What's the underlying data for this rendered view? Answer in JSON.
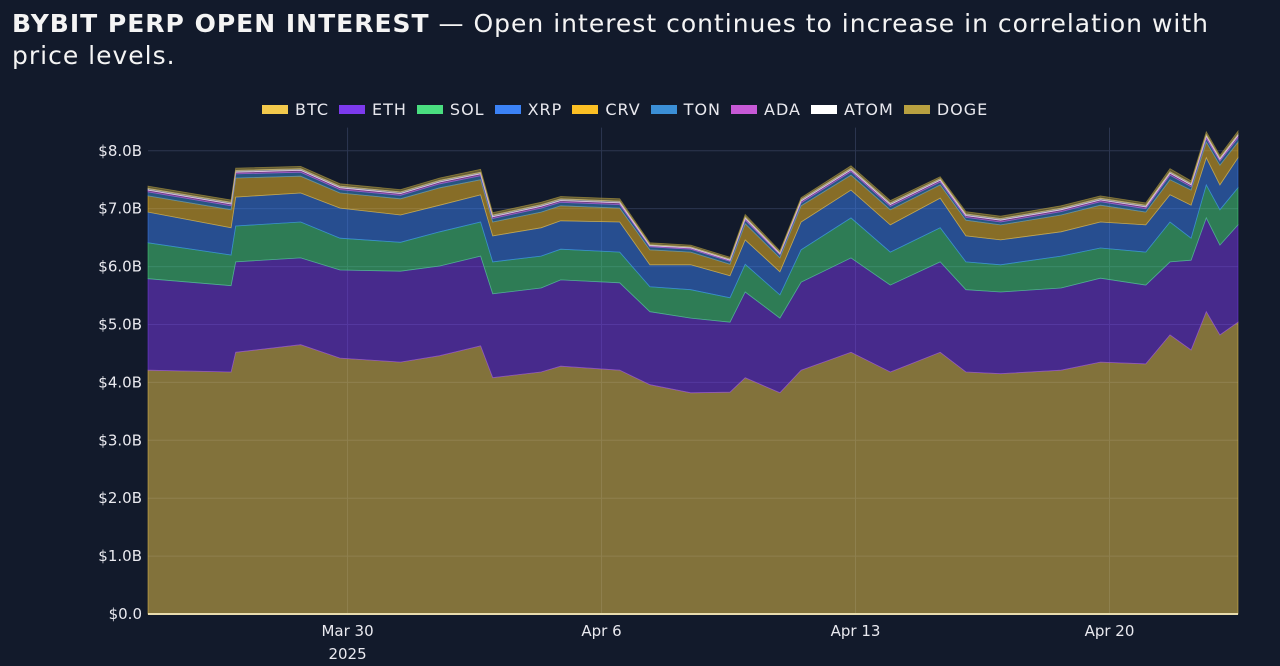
{
  "title": {
    "bold": "BYBIT PERP OPEN INTEREST",
    "rest": " — Open interest continues to increase in correlation with price levels."
  },
  "chart_data": {
    "type": "area",
    "stacked": true,
    "grid": true,
    "legend_position": "top",
    "xlim": [
      "2025-03-24T12:00",
      "2025-04-23T13:00"
    ],
    "ylim": [
      0,
      8.4
    ],
    "y_ticks": [
      0,
      1,
      2,
      3,
      4,
      5,
      6,
      7,
      8
    ],
    "y_tick_labels": [
      "$0.0",
      "$1.0B",
      "$2.0B",
      "$3.0B",
      "$4.0B",
      "$5.0B",
      "$6.0B",
      "$7.0B",
      "$8.0B"
    ],
    "x_ticks": [
      "2025-03-30",
      "2025-04-06",
      "2025-04-13",
      "2025-04-20"
    ],
    "x_tick_labels": [
      "Mar 30",
      "Apr 6",
      "Apr 13",
      "Apr 20"
    ],
    "x_year_label": "2025",
    "x": [
      "2025-03-24T12:00",
      "2025-03-26T19:00",
      "2025-03-26T22:00",
      "2025-03-28T17:00",
      "2025-03-29T19:00",
      "2025-03-31T11:00",
      "2025-04-01T13:00",
      "2025-04-02T16:00",
      "2025-04-03T00:00",
      "2025-04-04T08:00",
      "2025-04-04T21:00",
      "2025-04-06T12:00",
      "2025-04-07T08:00",
      "2025-04-08T11:00",
      "2025-04-09T13:00",
      "2025-04-09T23:00",
      "2025-04-10T22:00",
      "2025-04-11T12:00",
      "2025-04-12T21:00",
      "2025-04-13T23:00",
      "2025-04-15T08:00",
      "2025-04-16T01:00",
      "2025-04-17T00:00",
      "2025-04-18T16:00",
      "2025-04-19T18:00",
      "2025-04-21T00:00",
      "2025-04-21T16:00",
      "2025-04-22T06:00",
      "2025-04-22T16:00",
      "2025-04-23T01:00",
      "2025-04-23T13:00"
    ],
    "series": [
      {
        "name": "BTC",
        "color": "#f2c94c",
        "values": [
          4.21,
          4.18,
          4.52,
          4.65,
          4.42,
          4.35,
          4.46,
          4.63,
          4.08,
          4.18,
          4.28,
          4.21,
          3.96,
          3.82,
          3.83,
          4.08,
          3.82,
          4.21,
          4.52,
          4.18,
          4.52,
          4.18,
          4.15,
          4.21,
          4.35,
          4.32,
          4.82,
          4.56,
          5.22,
          4.82,
          5.04
        ]
      },
      {
        "name": "ETH",
        "color": "#7c3aed",
        "values": [
          1.58,
          1.49,
          1.56,
          1.5,
          1.52,
          1.57,
          1.55,
          1.55,
          1.45,
          1.45,
          1.49,
          1.51,
          1.26,
          1.29,
          1.21,
          1.48,
          1.29,
          1.52,
          1.63,
          1.5,
          1.56,
          1.42,
          1.41,
          1.42,
          1.45,
          1.36,
          1.26,
          1.55,
          1.62,
          1.55,
          1.68
        ]
      },
      {
        "name": "SOL",
        "color": "#4ade80",
        "values": [
          0.62,
          0.53,
          0.62,
          0.62,
          0.55,
          0.5,
          0.59,
          0.59,
          0.55,
          0.55,
          0.53,
          0.53,
          0.43,
          0.49,
          0.42,
          0.48,
          0.4,
          0.56,
          0.69,
          0.57,
          0.59,
          0.48,
          0.47,
          0.55,
          0.52,
          0.57,
          0.69,
          0.38,
          0.57,
          0.61,
          0.64
        ]
      },
      {
        "name": "XRP",
        "color": "#3b82f6",
        "values": [
          0.53,
          0.47,
          0.5,
          0.5,
          0.52,
          0.47,
          0.46,
          0.47,
          0.45,
          0.49,
          0.49,
          0.52,
          0.38,
          0.43,
          0.38,
          0.42,
          0.4,
          0.48,
          0.48,
          0.47,
          0.51,
          0.45,
          0.43,
          0.42,
          0.45,
          0.47,
          0.47,
          0.57,
          0.47,
          0.43,
          0.52
        ]
      },
      {
        "name": "CRV",
        "color": "#fbbf24",
        "values": [
          0.28,
          0.31,
          0.33,
          0.29,
          0.26,
          0.28,
          0.3,
          0.26,
          0.24,
          0.27,
          0.26,
          0.24,
          0.26,
          0.22,
          0.2,
          0.28,
          0.24,
          0.28,
          0.26,
          0.26,
          0.23,
          0.27,
          0.26,
          0.29,
          0.29,
          0.22,
          0.26,
          0.26,
          0.27,
          0.34,
          0.27
        ]
      },
      {
        "name": "TON",
        "color": "#3b8fd6",
        "values": [
          0.07,
          0.07,
          0.07,
          0.07,
          0.06,
          0.06,
          0.07,
          0.07,
          0.06,
          0.07,
          0.06,
          0.06,
          0.05,
          0.05,
          0.05,
          0.06,
          0.05,
          0.05,
          0.06,
          0.06,
          0.05,
          0.05,
          0.05,
          0.06,
          0.06,
          0.06,
          0.08,
          0.06,
          0.06,
          0.07,
          0.07
        ]
      },
      {
        "name": "ADA",
        "color": "#c659d6",
        "values": [
          0.03,
          0.03,
          0.03,
          0.03,
          0.03,
          0.03,
          0.03,
          0.03,
          0.03,
          0.03,
          0.03,
          0.03,
          0.02,
          0.02,
          0.02,
          0.03,
          0.02,
          0.03,
          0.03,
          0.03,
          0.03,
          0.03,
          0.03,
          0.03,
          0.03,
          0.03,
          0.03,
          0.03,
          0.04,
          0.03,
          0.04
        ]
      },
      {
        "name": "ATOM",
        "color": "#ffffff",
        "values": [
          0.03,
          0.03,
          0.03,
          0.03,
          0.03,
          0.03,
          0.03,
          0.03,
          0.03,
          0.03,
          0.03,
          0.03,
          0.02,
          0.02,
          0.02,
          0.03,
          0.02,
          0.03,
          0.03,
          0.03,
          0.03,
          0.03,
          0.03,
          0.03,
          0.03,
          0.03,
          0.03,
          0.03,
          0.03,
          0.03,
          0.03
        ]
      },
      {
        "name": "DOGE",
        "color": "#b8a040",
        "values": [
          0.04,
          0.04,
          0.04,
          0.04,
          0.04,
          0.04,
          0.04,
          0.05,
          0.04,
          0.04,
          0.04,
          0.04,
          0.03,
          0.03,
          0.03,
          0.04,
          0.03,
          0.03,
          0.04,
          0.04,
          0.03,
          0.04,
          0.04,
          0.04,
          0.04,
          0.04,
          0.05,
          0.04,
          0.05,
          0.04,
          0.05
        ]
      }
    ]
  }
}
